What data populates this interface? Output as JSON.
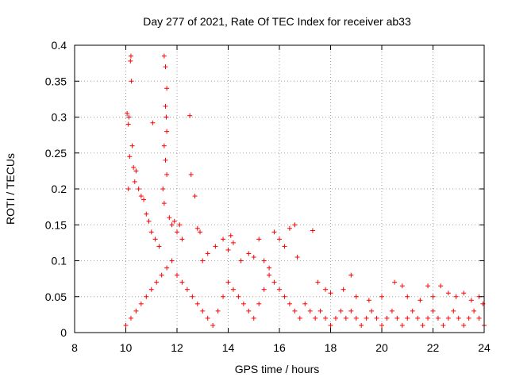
{
  "chart_data": {
    "type": "scatter",
    "title": "Day 277 of 2021, Rate Of TEC Index for receiver ab33",
    "xlabel": "GPS time / hours",
    "ylabel": "ROTI / TECUs",
    "xlim": [
      8,
      24
    ],
    "ylim": [
      0,
      0.4
    ],
    "x_ticks": [
      8,
      10,
      12,
      14,
      16,
      18,
      20,
      22,
      24
    ],
    "y_ticks": [
      0,
      0.05,
      0.1,
      0.15,
      0.2,
      0.25,
      0.3,
      0.35,
      0.4
    ],
    "x_tick_labels": [
      "8",
      "10",
      "12",
      "14",
      "16",
      "18",
      "20",
      "22",
      "24"
    ],
    "y_tick_labels": [
      "0",
      "0.05",
      "0.1",
      "0.15",
      "0.2",
      "0.25",
      "0.3",
      "0.35",
      "0.4"
    ],
    "grid": true,
    "marker": "+",
    "color": "#ff0000",
    "series": [
      {
        "points": [
          [
            10.05,
            0.305
          ],
          [
            10.1,
            0.29
          ],
          [
            10.12,
            0.3
          ],
          [
            10.15,
            0.245
          ],
          [
            10.1,
            0.2
          ],
          [
            10.2,
            0.385
          ],
          [
            10.18,
            0.378
          ],
          [
            10.22,
            0.35
          ],
          [
            10.25,
            0.26
          ],
          [
            10.3,
            0.23
          ],
          [
            10.35,
            0.21
          ],
          [
            10.4,
            0.225
          ],
          [
            10.5,
            0.2
          ],
          [
            10.6,
            0.19
          ],
          [
            10.7,
            0.185
          ],
          [
            10.8,
            0.165
          ],
          [
            10.9,
            0.155
          ],
          [
            11.0,
            0.14
          ],
          [
            11.05,
            0.292
          ],
          [
            11.15,
            0.13
          ],
          [
            11.3,
            0.12
          ],
          [
            11.5,
            0.385
          ],
          [
            11.55,
            0.37
          ],
          [
            11.6,
            0.34
          ],
          [
            11.55,
            0.315
          ],
          [
            11.58,
            0.3
          ],
          [
            11.6,
            0.28
          ],
          [
            11.5,
            0.26
          ],
          [
            11.55,
            0.24
          ],
          [
            11.6,
            0.22
          ],
          [
            11.45,
            0.2
          ],
          [
            11.5,
            0.18
          ],
          [
            11.7,
            0.16
          ],
          [
            11.8,
            0.15
          ],
          [
            11.9,
            0.155
          ],
          [
            12.0,
            0.14
          ],
          [
            12.1,
            0.15
          ],
          [
            12.2,
            0.13
          ],
          [
            12.5,
            0.302
          ],
          [
            12.55,
            0.22
          ],
          [
            12.7,
            0.19
          ],
          [
            12.8,
            0.145
          ],
          [
            12.9,
            0.14
          ],
          [
            13.0,
            0.1
          ],
          [
            13.2,
            0.11
          ],
          [
            13.5,
            0.12
          ],
          [
            13.8,
            0.13
          ],
          [
            14.0,
            0.115
          ],
          [
            14.1,
            0.135
          ],
          [
            14.2,
            0.125
          ],
          [
            14.5,
            0.1
          ],
          [
            14.8,
            0.11
          ],
          [
            15.0,
            0.105
          ],
          [
            15.2,
            0.13
          ],
          [
            15.4,
            0.1
          ],
          [
            15.6,
            0.09
          ],
          [
            15.8,
            0.14
          ],
          [
            16.0,
            0.13
          ],
          [
            16.2,
            0.12
          ],
          [
            16.4,
            0.145
          ],
          [
            16.6,
            0.15
          ],
          [
            16.7,
            0.105
          ],
          [
            17.3,
            0.142
          ],
          [
            17.5,
            0.07
          ],
          [
            17.8,
            0.06
          ],
          [
            18.0,
            0.055
          ],
          [
            18.5,
            0.06
          ],
          [
            18.8,
            0.08
          ],
          [
            19.0,
            0.05
          ],
          [
            19.5,
            0.045
          ],
          [
            20.0,
            0.05
          ],
          [
            20.5,
            0.07
          ],
          [
            20.8,
            0.065
          ],
          [
            21.0,
            0.05
          ],
          [
            21.5,
            0.045
          ],
          [
            21.8,
            0.065
          ],
          [
            22.0,
            0.05
          ],
          [
            22.3,
            0.065
          ],
          [
            22.6,
            0.055
          ],
          [
            22.9,
            0.05
          ],
          [
            23.2,
            0.055
          ],
          [
            23.5,
            0.045
          ],
          [
            23.8,
            0.05
          ],
          [
            23.95,
            0.04
          ],
          [
            10.0,
            0.01
          ],
          [
            10.2,
            0.02
          ],
          [
            10.4,
            0.03
          ],
          [
            10.6,
            0.04
          ],
          [
            10.8,
            0.05
          ],
          [
            11.0,
            0.06
          ],
          [
            11.2,
            0.07
          ],
          [
            11.4,
            0.08
          ],
          [
            11.6,
            0.09
          ],
          [
            11.8,
            0.1
          ],
          [
            12.0,
            0.08
          ],
          [
            12.2,
            0.07
          ],
          [
            12.4,
            0.06
          ],
          [
            12.6,
            0.05
          ],
          [
            12.8,
            0.04
          ],
          [
            13.0,
            0.03
          ],
          [
            13.2,
            0.02
          ],
          [
            13.4,
            0.01
          ],
          [
            13.6,
            0.03
          ],
          [
            13.8,
            0.05
          ],
          [
            14.0,
            0.07
          ],
          [
            14.2,
            0.06
          ],
          [
            14.4,
            0.05
          ],
          [
            14.6,
            0.04
          ],
          [
            14.8,
            0.03
          ],
          [
            15.0,
            0.02
          ],
          [
            15.2,
            0.04
          ],
          [
            15.4,
            0.06
          ],
          [
            15.6,
            0.08
          ],
          [
            15.8,
            0.07
          ],
          [
            16.0,
            0.06
          ],
          [
            16.2,
            0.05
          ],
          [
            16.4,
            0.04
          ],
          [
            16.6,
            0.03
          ],
          [
            16.8,
            0.02
          ],
          [
            17.0,
            0.04
          ],
          [
            17.2,
            0.03
          ],
          [
            17.4,
            0.02
          ],
          [
            17.6,
            0.03
          ],
          [
            17.8,
            0.02
          ],
          [
            18.0,
            0.01
          ],
          [
            18.2,
            0.02
          ],
          [
            18.4,
            0.03
          ],
          [
            18.6,
            0.02
          ],
          [
            18.8,
            0.03
          ],
          [
            19.0,
            0.02
          ],
          [
            19.2,
            0.01
          ],
          [
            19.4,
            0.02
          ],
          [
            19.6,
            0.03
          ],
          [
            19.8,
            0.02
          ],
          [
            20.0,
            0.01
          ],
          [
            20.2,
            0.02
          ],
          [
            20.4,
            0.03
          ],
          [
            20.6,
            0.02
          ],
          [
            20.8,
            0.01
          ],
          [
            21.0,
            0.02
          ],
          [
            21.2,
            0.03
          ],
          [
            21.4,
            0.02
          ],
          [
            21.6,
            0.01
          ],
          [
            21.8,
            0.02
          ],
          [
            22.0,
            0.03
          ],
          [
            22.2,
            0.02
          ],
          [
            22.4,
            0.01
          ],
          [
            22.6,
            0.02
          ],
          [
            22.8,
            0.03
          ],
          [
            23.0,
            0.02
          ],
          [
            23.2,
            0.01
          ],
          [
            23.4,
            0.02
          ],
          [
            23.6,
            0.03
          ],
          [
            23.8,
            0.02
          ],
          [
            24.0,
            0.01
          ]
        ]
      }
    ]
  }
}
